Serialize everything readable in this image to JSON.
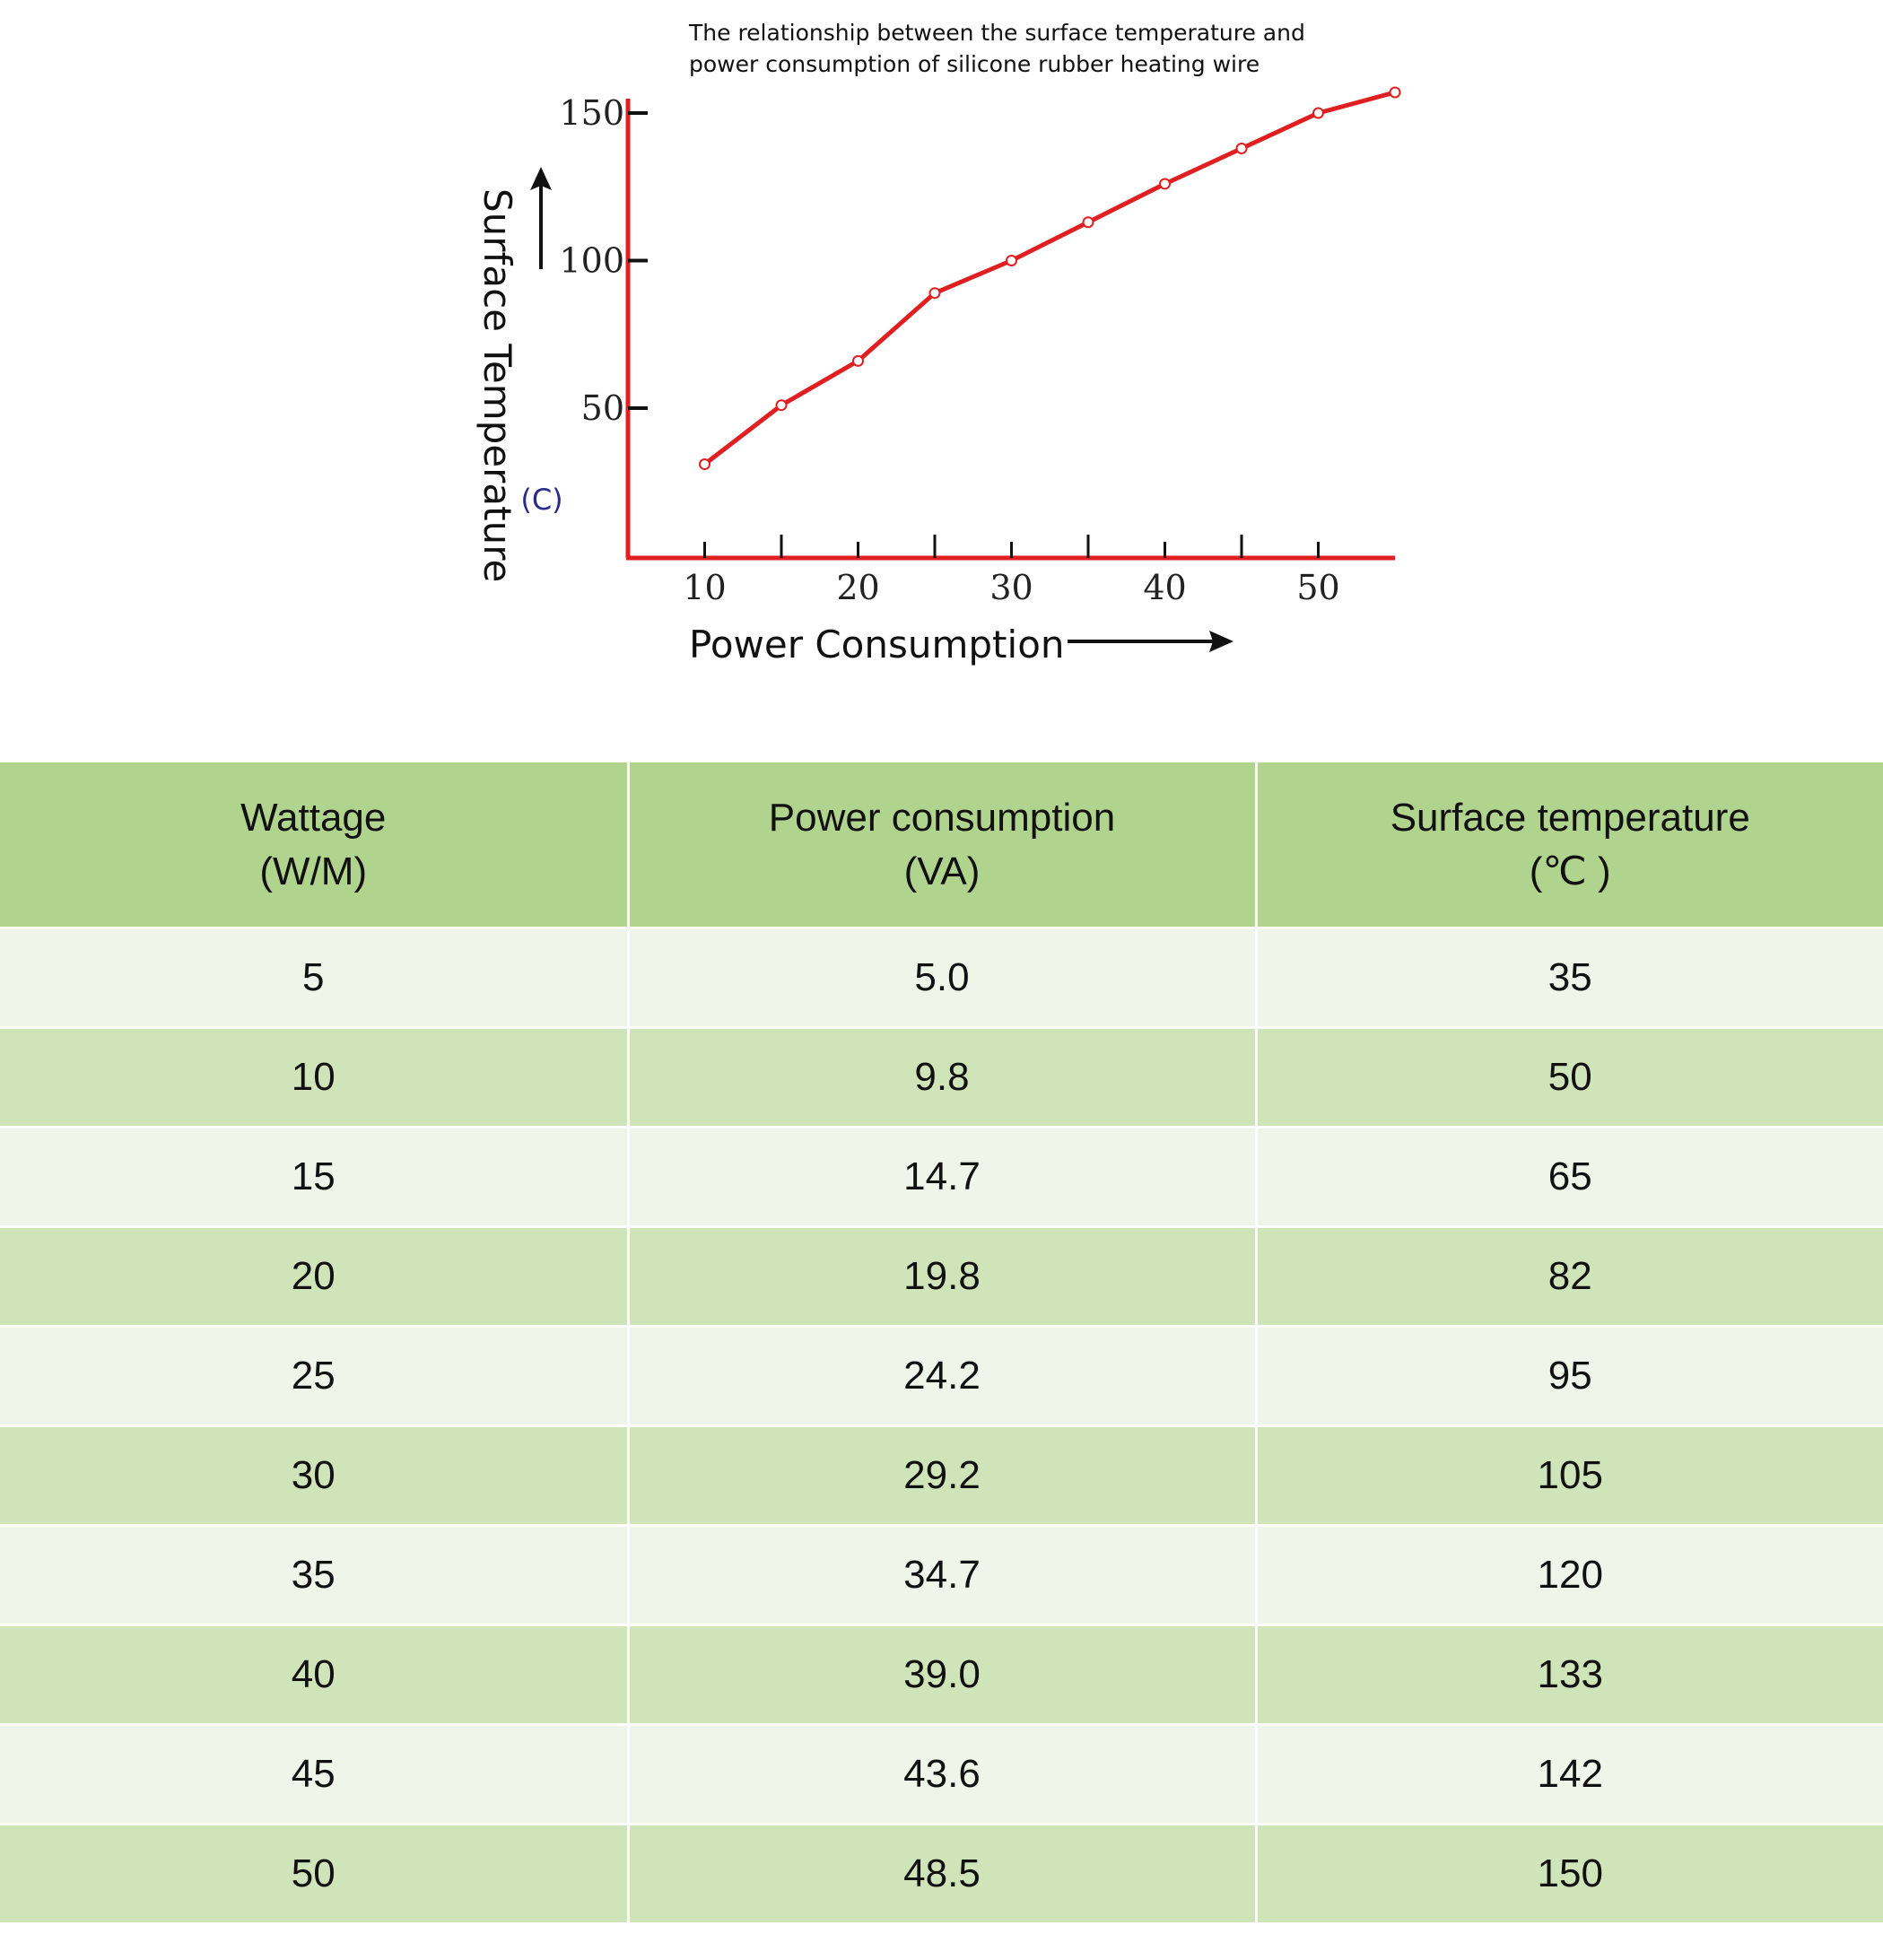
{
  "colors": {
    "line": "#e02020",
    "axis": "#e02020",
    "marker_fill": "#ffffff",
    "header_bg": "#b0d48e",
    "row_light": "#eff6e9",
    "row_dark": "#cfe4b8"
  },
  "chart_data": {
    "type": "line",
    "title": "The relationship between the surface temperature and",
    "subtitle": "power consumption of silicone rubber heating wire",
    "xlabel": "Power Consumption",
    "ylabel": "Surface Temperature",
    "y_unit": "(C)",
    "xticks": [
      10,
      20,
      30,
      40,
      50
    ],
    "yticks": [
      50,
      100,
      150
    ],
    "xlim": [
      5,
      55
    ],
    "ylim": [
      0,
      155
    ],
    "grid": false,
    "series": [
      {
        "x": [
          10,
          15,
          20,
          25,
          30,
          35,
          40,
          45,
          50,
          55
        ],
        "y": [
          31,
          51,
          66,
          89,
          100,
          113,
          126,
          138,
          150,
          157
        ]
      }
    ]
  },
  "table": {
    "headers": [
      [
        "Wattage",
        "(W/M)"
      ],
      [
        "Power consumption",
        "(VA)"
      ],
      [
        "Surface temperature",
        "(℃ )"
      ]
    ],
    "rows": [
      [
        "5",
        "5.0",
        "35"
      ],
      [
        "10",
        "9.8",
        "50"
      ],
      [
        "15",
        "14.7",
        "65"
      ],
      [
        "20",
        "19.8",
        "82"
      ],
      [
        "25",
        "24.2",
        "95"
      ],
      [
        "30",
        "29.2",
        "105"
      ],
      [
        "35",
        "34.7",
        "120"
      ],
      [
        "40",
        "39.0",
        "133"
      ],
      [
        "45",
        "43.6",
        "142"
      ],
      [
        "50",
        "48.5",
        "150"
      ]
    ]
  }
}
